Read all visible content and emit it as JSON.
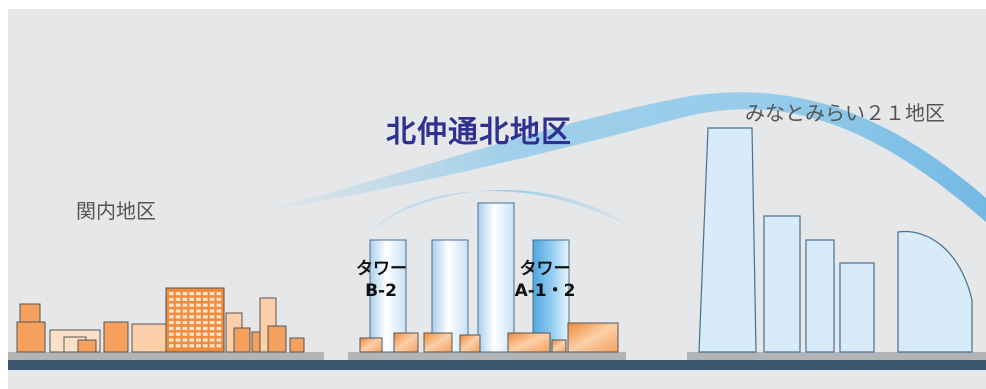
{
  "districts": {
    "kitanaka": "北仲通北地区",
    "kannai": "関内地区",
    "minatomirai": "みなとみらい２１地区"
  },
  "towers": {
    "b": {
      "line1": "タワー",
      "line2": "B-2"
    },
    "a": {
      "line1": "タワー",
      "line2": "A-1・2"
    }
  },
  "colors": {
    "background": "#e6e7e8",
    "highlight_district": "#2e3192",
    "ground": "#3d5670",
    "low_building": "#f7a864",
    "tower": "#cfe3f4",
    "minatomirai_building": "#d7ecf8",
    "wind_arc": "#8ec9ea"
  }
}
